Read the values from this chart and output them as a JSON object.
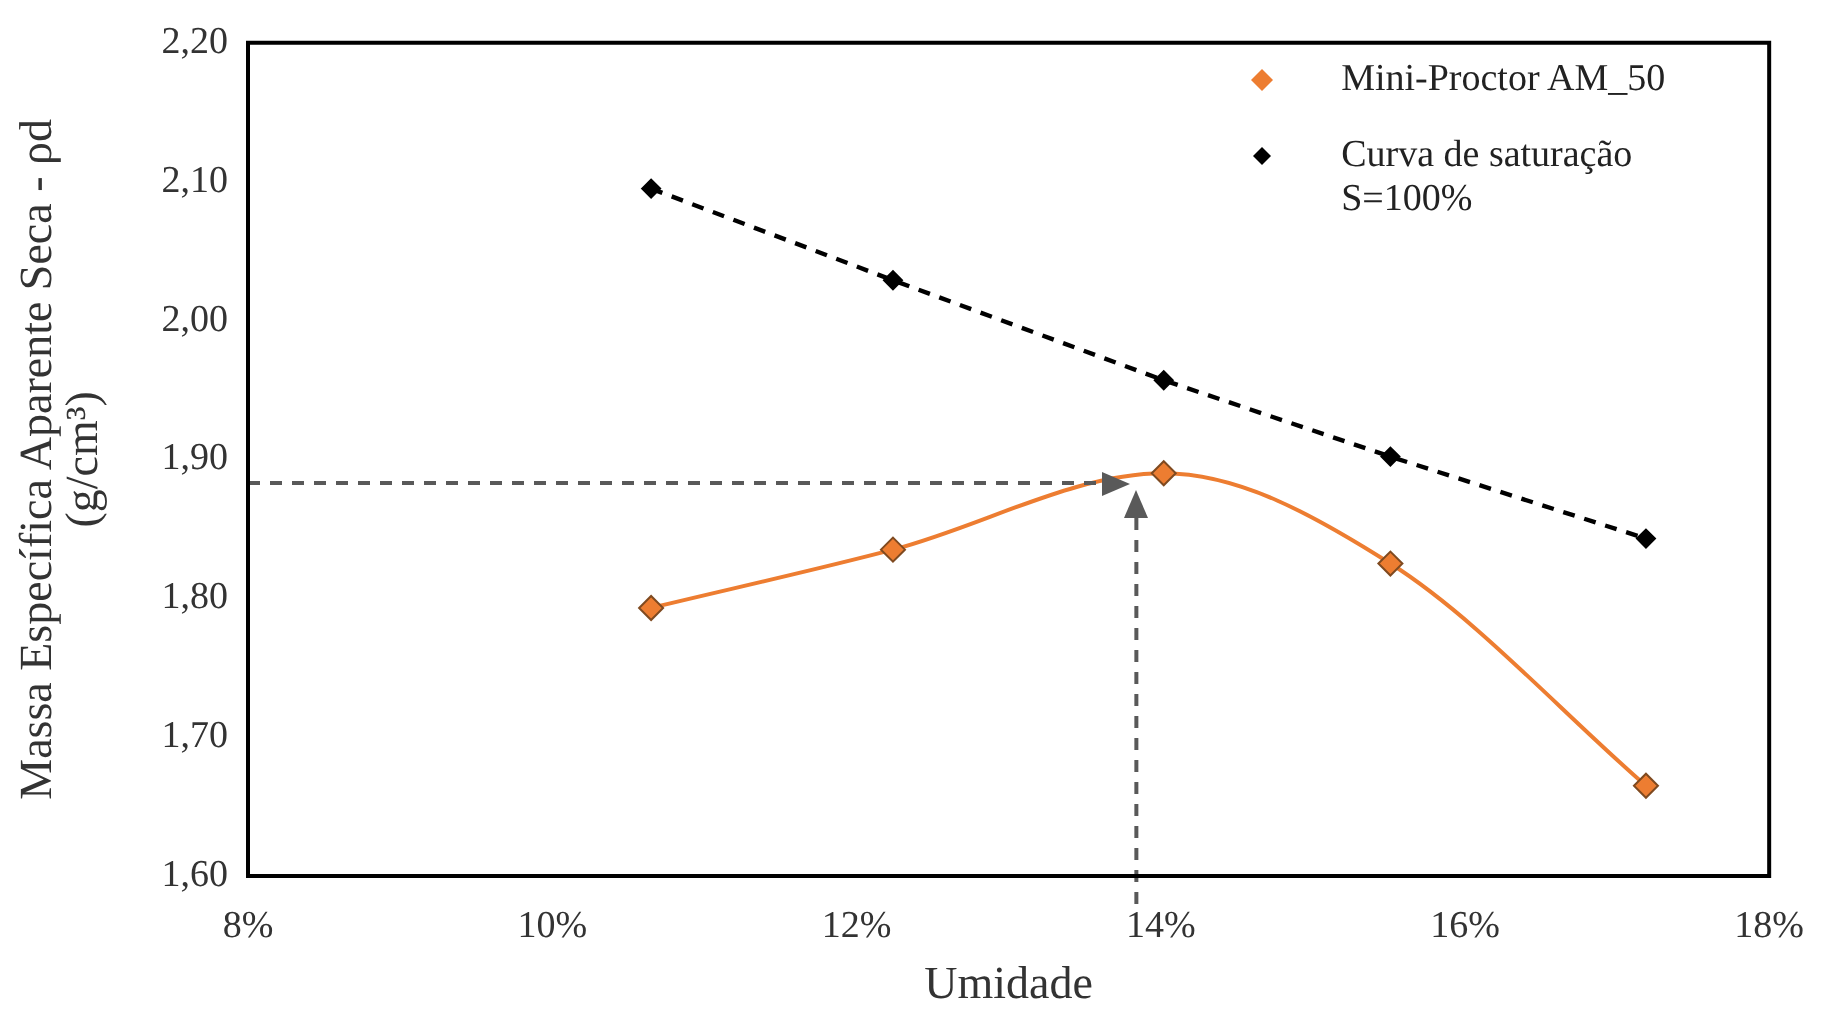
{
  "chart_data": {
    "type": "line",
    "xlabel": "Umidade",
    "ylabel": "Massa Específica Aparente Seca - ρd (g/cm³)",
    "xlim": [
      8,
      18
    ],
    "xticks": [
      {
        "value": 8,
        "label": "8%"
      },
      {
        "value": 10,
        "label": "10%"
      },
      {
        "value": 12,
        "label": "12%"
      },
      {
        "value": 14,
        "label": "14%"
      },
      {
        "value": 16,
        "label": "16%"
      },
      {
        "value": 18,
        "label": "18%"
      }
    ],
    "ylim": [
      1.6,
      2.2
    ],
    "yticks": [
      {
        "value": 1.6,
        "label": "1,60"
      },
      {
        "value": 1.7,
        "label": "1,70"
      },
      {
        "value": 1.8,
        "label": "1,80"
      },
      {
        "value": 1.9,
        "label": "1,90"
      },
      {
        "value": 2.0,
        "label": "2,00"
      },
      {
        "value": 2.1,
        "label": "2,10"
      },
      {
        "value": 2.2,
        "label": "2,20"
      }
    ],
    "series": [
      {
        "name": "Mini-Proctor AM_50",
        "color": "#ed7d31",
        "line_style": "solid",
        "x": [
          10.65,
          12.24,
          14.02,
          15.51,
          17.19
        ],
        "values": [
          1.793,
          1.835,
          1.89,
          1.825,
          1.665
        ]
      },
      {
        "name": "Curva de saturação S=100%",
        "color": "#000000",
        "line_style": "dashed",
        "x": [
          10.65,
          12.24,
          14.02,
          15.51,
          17.19
        ],
        "values": [
          2.095,
          2.029,
          1.957,
          1.902,
          1.843
        ]
      }
    ],
    "ref_lines": [
      {
        "axis": "y",
        "value": 1.883,
        "color": "#595959",
        "line_style": "dashed"
      },
      {
        "axis": "x",
        "value": 13.84,
        "color": "#595959",
        "line_style": "dashed"
      }
    ],
    "marker": "diamond",
    "grid": false,
    "legend": "top right"
  }
}
